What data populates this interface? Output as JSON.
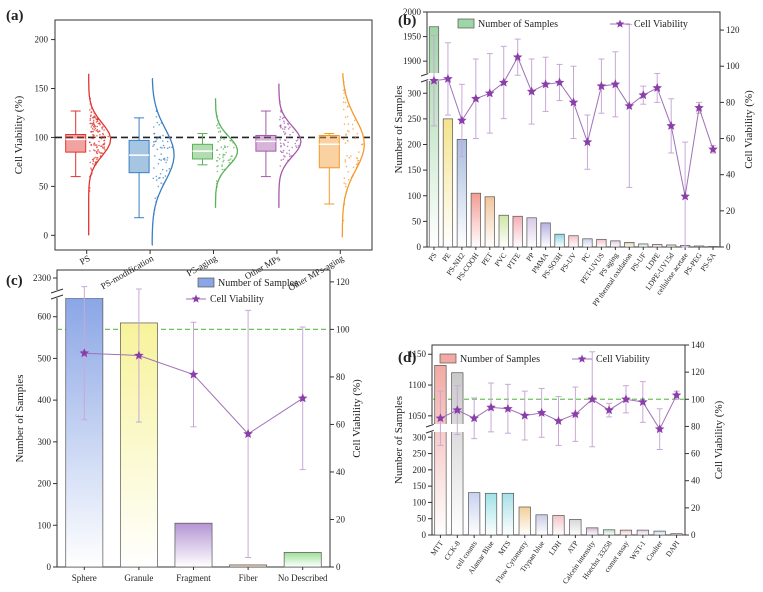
{
  "panels": {
    "a": {
      "label": "(a)",
      "ylabel": "Cell Viability (%)",
      "yticks": [
        0,
        50,
        100,
        150,
        200
      ],
      "ylim": [
        -15,
        220
      ],
      "reference_line": 100,
      "categories": [
        "PS",
        "PS-modification",
        "PS-aging",
        "Other MPs",
        "Other MPs-aging"
      ],
      "colors": [
        "#e0342f",
        "#3a7fc1",
        "#59b257",
        "#a45aa8",
        "#f39a2e"
      ],
      "box": [
        {
          "whisker_low": 60,
          "q1": 85,
          "median": 98,
          "q3": 103,
          "whisker_high": 127
        },
        {
          "whisker_low": 18,
          "q1": 64,
          "median": 82,
          "q3": 97,
          "whisker_high": 120
        },
        {
          "whisker_low": 72,
          "q1": 78,
          "median": 86,
          "q3": 93,
          "whisker_high": 104
        },
        {
          "whisker_low": 60,
          "q1": 86,
          "median": 96,
          "q3": 102,
          "whisker_high": 127
        },
        {
          "whisker_low": 32,
          "q1": 69,
          "median": 93,
          "q3": 102,
          "whisker_high": 104
        }
      ],
      "violin_range": [
        [
          0,
          165
        ],
        [
          -10,
          160
        ],
        [
          28,
          140
        ],
        [
          28,
          155
        ],
        [
          -2,
          165
        ]
      ]
    },
    "b": {
      "label": "(b)",
      "ylabel_left": "Number of Samples",
      "ylabel_right": "Cell Viability (%)",
      "legend_bar": "Number of Samples",
      "legend_line": "Cell Viability",
      "left_ticks_lower": [
        0,
        50,
        100,
        150,
        200,
        250,
        300
      ],
      "left_ticks_upper": [
        1900,
        1950,
        2000
      ],
      "right_ticks": [
        0,
        20,
        40,
        60,
        80,
        100,
        120
      ],
      "categories": [
        "PS",
        "PE",
        "PS-NH2",
        "PS-COOH",
        "PET",
        "PVC",
        "PTFE",
        "PP",
        "PMMA",
        "PS-SO3H",
        "PS-UV",
        "PC",
        "PET-UVUS",
        "PS aging",
        "PP thermal oxidation",
        "PS-UF",
        "LDPE",
        "LDPE-UV15d",
        "cellulose acetate",
        "PS-PEG",
        "PS-SA"
      ],
      "samples": [
        1970,
        250,
        210,
        105,
        98,
        62,
        60,
        57,
        47,
        25,
        22,
        16,
        15,
        12,
        9,
        6,
        5,
        4,
        3,
        2,
        1
      ],
      "viability": [
        92,
        93,
        70,
        82,
        85,
        91,
        105,
        86,
        90,
        91,
        80,
        58,
        89,
        90,
        78,
        84,
        88,
        67,
        28,
        77,
        54
      ],
      "viability_err": [
        25,
        20,
        20,
        22,
        22,
        20,
        10,
        18,
        15,
        10,
        20,
        15,
        15,
        18,
        45,
        5,
        8,
        15,
        30,
        3,
        2
      ]
    },
    "c": {
      "label": "(c)",
      "ylabel_left": "Number of Samples",
      "ylabel_right": "Cell Viability (%)",
      "legend_bar": "Number of Samples",
      "legend_line": "Cell Viability",
      "left_ticks_lower": [
        0,
        100,
        200,
        300,
        400,
        500,
        600
      ],
      "left_ticks_upper": [
        2300
      ],
      "right_ticks": [
        0,
        20,
        40,
        60,
        80,
        100,
        120
      ],
      "reference_line": 100,
      "categories": [
        "Sphere",
        "Granule",
        "Fragment",
        "Fiber",
        "No Described"
      ],
      "samples": [
        2200,
        585,
        105,
        5,
        35
      ],
      "viability": [
        90,
        89,
        81,
        56,
        71
      ],
      "viability_err": [
        28,
        28,
        22,
        52,
        30
      ]
    },
    "d": {
      "label": "(d)",
      "ylabel_left": "Number of Samples",
      "ylabel_right": "Cell Viability (%)",
      "legend_bar": "Number of Samples",
      "legend_line": "Cell Viability",
      "left_ticks_lower": [
        0,
        50,
        100,
        150,
        200,
        250,
        300
      ],
      "left_ticks_upper": [
        1050,
        1100,
        1150
      ],
      "right_ticks": [
        0,
        20,
        40,
        60,
        80,
        100,
        120,
        140
      ],
      "reference_line": 100,
      "categories": [
        "MTT",
        "CCK-8",
        "cell counts",
        "Alamar Blue",
        "MTS",
        "Flow Cytometry",
        "Trypan blue",
        "LDH",
        "ATP",
        "Calcein intensity",
        "Hoechst 33258",
        "comet assay",
        "WST-1",
        "Coulter",
        "DAPI"
      ],
      "samples": [
        1132,
        1120,
        130,
        128,
        128,
        86,
        62,
        60,
        48,
        22,
        16,
        15,
        15,
        12,
        4
      ],
      "viability": [
        86,
        92,
        86,
        94,
        93,
        88,
        90,
        84,
        89,
        100,
        92,
        100,
        98,
        78,
        103
      ],
      "viability_err": [
        20,
        18,
        15,
        18,
        18,
        18,
        18,
        18,
        20,
        35,
        5,
        10,
        15,
        15,
        3
      ]
    }
  },
  "chart_data": [
    {
      "type": "box",
      "title": "(a)",
      "ylabel": "Cell Viability (%)",
      "categories": [
        "PS",
        "PS-modification",
        "PS-aging",
        "Other MPs",
        "Other MPs-aging"
      ],
      "medians": [
        98,
        82,
        86,
        96,
        93
      ],
      "ylim": [
        -15,
        220
      ]
    },
    {
      "type": "bar",
      "title": "(b)",
      "categories": [
        "PS",
        "PE",
        "PS-NH2",
        "PS-COOH",
        "PET",
        "PVC",
        "PTFE",
        "PP",
        "PMMA",
        "PS-SO3H",
        "PS-UV",
        "PC",
        "PET-UVUS",
        "PS aging",
        "PP thermal oxidation",
        "PS-UF",
        "LDPE",
        "LDPE-UV15d",
        "cellulose acetate",
        "PS-PEG",
        "PS-SA"
      ],
      "series": [
        {
          "name": "Number of Samples",
          "values": [
            1970,
            250,
            210,
            105,
            98,
            62,
            60,
            57,
            47,
            25,
            22,
            16,
            15,
            12,
            9,
            6,
            5,
            4,
            3,
            2,
            1
          ]
        },
        {
          "name": "Cell Viability",
          "values": [
            92,
            93,
            70,
            82,
            85,
            91,
            105,
            86,
            90,
            91,
            80,
            58,
            89,
            90,
            78,
            84,
            88,
            67,
            28,
            77,
            54
          ]
        }
      ]
    },
    {
      "type": "bar",
      "title": "(c)",
      "categories": [
        "Sphere",
        "Granule",
        "Fragment",
        "Fiber",
        "No Described"
      ],
      "series": [
        {
          "name": "Number of Samples",
          "values": [
            2200,
            585,
            105,
            5,
            35
          ]
        },
        {
          "name": "Cell Viability",
          "values": [
            90,
            89,
            81,
            56,
            71
          ]
        }
      ]
    },
    {
      "type": "bar",
      "title": "(d)",
      "categories": [
        "MTT",
        "CCK-8",
        "cell counts",
        "Alamar Blue",
        "MTS",
        "Flow Cytometry",
        "Trypan blue",
        "LDH",
        "ATP",
        "Calcein intensity",
        "Hoechst 33258",
        "comet assay",
        "WST-1",
        "Coulter",
        "DAPI"
      ],
      "series": [
        {
          "name": "Number of Samples",
          "values": [
            1132,
            1120,
            130,
            128,
            128,
            86,
            62,
            60,
            48,
            22,
            16,
            15,
            15,
            12,
            4
          ]
        },
        {
          "name": "Cell Viability",
          "values": [
            86,
            92,
            86,
            94,
            93,
            88,
            90,
            84,
            89,
            100,
            92,
            100,
            98,
            78,
            103
          ]
        }
      ]
    }
  ]
}
